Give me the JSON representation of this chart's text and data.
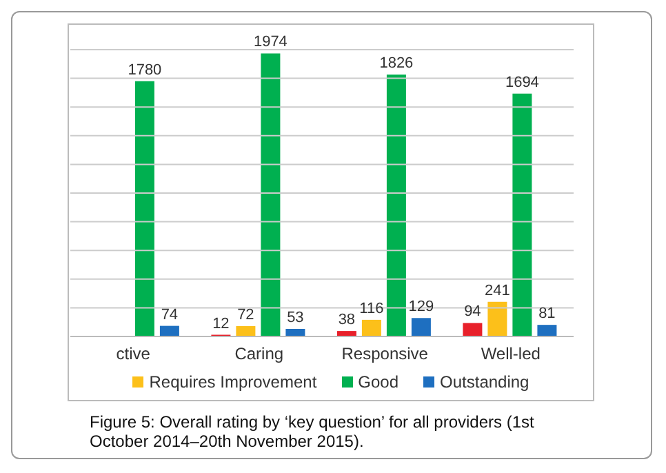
{
  "chart_data": {
    "type": "bar",
    "categories": [
      "ctive",
      "Caring",
      "Responsive",
      "Well-led"
    ],
    "series": [
      {
        "color": "#e8202a",
        "values": [
          null,
          12,
          38,
          94
        ]
      },
      {
        "name": "Requires Improvement",
        "color": "#fcc01a",
        "values": [
          null,
          72,
          116,
          241
        ]
      },
      {
        "name": "Good",
        "color": "#00b050",
        "values": [
          1780,
          1974,
          1826,
          1694
        ]
      },
      {
        "name": "Outstanding",
        "color": "#1e6fc0",
        "values": [
          74,
          53,
          129,
          81
        ]
      }
    ],
    "ylim": [
      0,
      2000
    ],
    "yticks": [
      {
        "value": 0,
        "label": null
      },
      {
        "value": 200,
        "label": null
      },
      {
        "value": 400,
        "label": null
      },
      {
        "value": 600,
        "label": null
      },
      {
        "value": 800,
        "label": null
      },
      {
        "value": 1000,
        "label": null
      },
      {
        "value": 1200,
        "label": null
      },
      {
        "value": 1400,
        "label": null
      },
      {
        "value": 1600,
        "label": null
      },
      {
        "value": 1800,
        "label": null
      },
      {
        "value": 2000,
        "label": null
      }
    ],
    "tick_labels": "x",
    "grid": "y",
    "legend": "bottom",
    "data_labels": true,
    "annotations": [
      "Figure 5: Overall rating by ‘key question’ for all providers (1st October 2014–20th November 2015)."
    ]
  }
}
